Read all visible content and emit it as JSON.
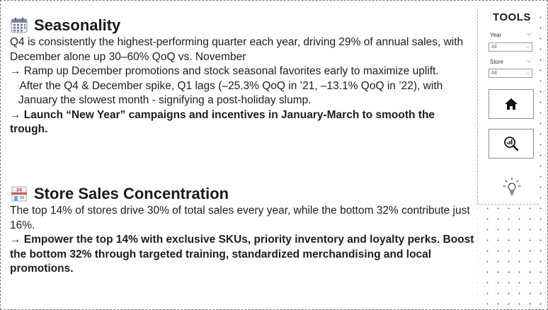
{
  "seasonality": {
    "title": "Seasonality",
    "line1": "Q4 is consistently the highest-performing quarter each year, driving 29% of annual sales, with December alone up 30–60% QoQ vs. November",
    "line2": "→ Ramp up December promotions and stock seasonal favorites early to maximize uplift.",
    "line3": "After the Q4 & December spike, Q1 lags (–25.3% QoQ in ’21, –13.1% QoQ in ’22), with January the slowest month - signifying a post-holiday slump.",
    "line4": "→ Launch “New Year” campaigns and incentives in January-March to smooth the trough."
  },
  "store": {
    "title": "Store Sales Concentration",
    "line1": "The top 14% of stores drive 30% of total sales every year, while the bottom 32% contribute just 16%.",
    "line2": "→ Empower the top 14% with exclusive SKUs, priority inventory and loyalty perks. Boost the bottom 32% through targeted training, standardized merchandising and local promotions.",
    "icon_text": "24"
  },
  "tools": {
    "title": "TOOLS",
    "year_label": "Year",
    "year_value": "All",
    "store_label": "Store",
    "store_value": "All"
  },
  "icons": {
    "calendar": "calendar-icon",
    "store": "convenience-store-icon",
    "home": "home-icon",
    "analytics": "magnifier-chart-icon",
    "insight": "lightbulb-icon"
  }
}
